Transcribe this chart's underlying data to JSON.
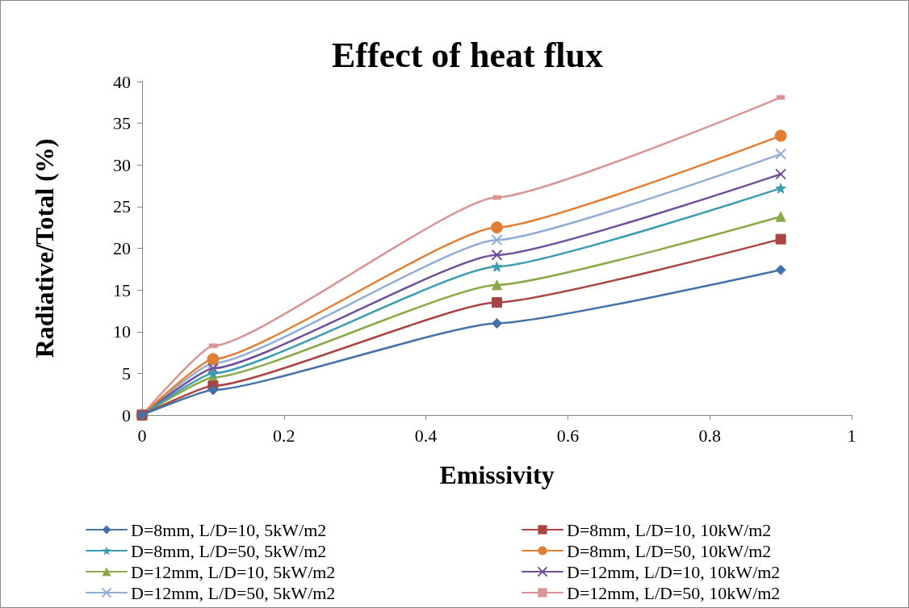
{
  "chart_data": {
    "type": "line",
    "title": "Effect of heat flux",
    "xlabel": "Emissivity",
    "ylabel": "Radiative/Total (%)",
    "x": [
      0,
      0.1,
      0.5,
      0.9
    ],
    "series": [
      {
        "name": "D=8mm, L/D=10, 5kW/m2",
        "color": "#4472a8",
        "marker": "diamond",
        "values": [
          0,
          3.0,
          11.0,
          17.4
        ]
      },
      {
        "name": "D=8mm, L/D=10, 10kW/m2",
        "color": "#a94442",
        "marker": "square",
        "values": [
          0,
          3.5,
          13.5,
          21.1
        ]
      },
      {
        "name": "D=8mm, L/D=50, 5kW/m2",
        "color": "#3b9bb0",
        "marker": "star",
        "values": [
          0,
          5.0,
          17.8,
          27.2
        ]
      },
      {
        "name": "D=8mm, L/D=50, 10kW/m2",
        "color": "#e07f34",
        "marker": "circle",
        "values": [
          0,
          6.7,
          22.5,
          33.5
        ]
      },
      {
        "name": "D=12mm, L/D=10, 5kW/m2",
        "color": "#8aaa48",
        "marker": "triangle",
        "values": [
          0,
          4.5,
          15.6,
          23.8
        ]
      },
      {
        "name": "D=12mm, L/D=10, 10kW/m2",
        "color": "#6f4f98",
        "marker": "cross",
        "values": [
          0,
          5.6,
          19.2,
          28.9
        ]
      },
      {
        "name": "D=12mm, L/D=50, 5kW/m2",
        "color": "#93acd6",
        "marker": "cross",
        "values": [
          0,
          6.2,
          21.0,
          31.3
        ]
      },
      {
        "name": "D=12mm, L/D=50, 10kW/m2",
        "color": "#d99594",
        "marker": "square",
        "values": [
          0,
          8.3,
          26.1,
          38.1
        ]
      }
    ],
    "xlim": [
      0,
      1
    ],
    "xticks": [
      0,
      0.2,
      0.4,
      0.6,
      0.8,
      1
    ],
    "ylim": [
      0,
      40
    ],
    "yticks": [
      0,
      5,
      10,
      15,
      20,
      25,
      30,
      35,
      40
    ],
    "grid": false,
    "legend": "bottom",
    "line_style": "solid"
  }
}
